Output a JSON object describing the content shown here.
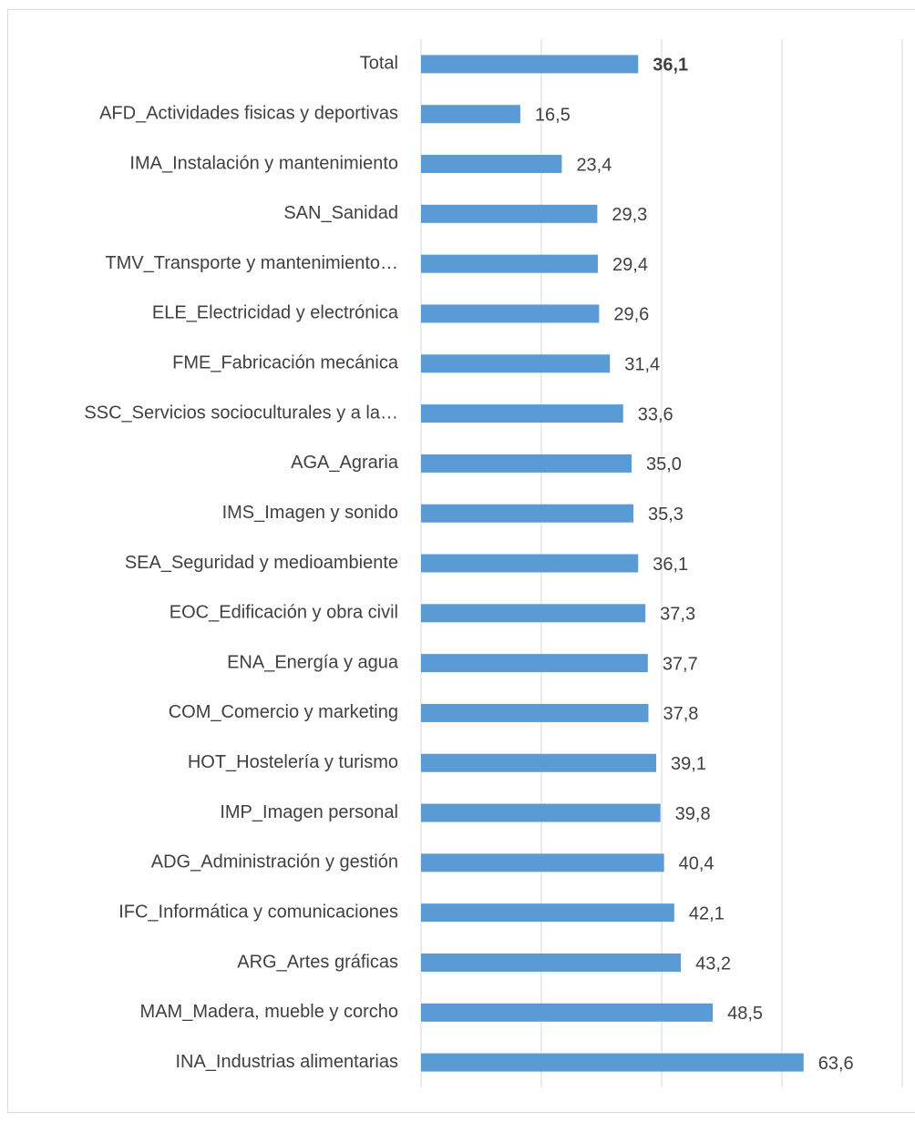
{
  "chart_data": {
    "type": "bar",
    "orientation": "horizontal",
    "categories": [
      "Total",
      "AFD_Actividades fisicas y deportivas",
      "IMA_Instalación y mantenimiento",
      "SAN_Sanidad",
      "TMV_Transporte y mantenimiento…",
      "ELE_Electricidad y electrónica",
      "FME_Fabricación mecánica",
      "SSC_Servicios socioculturales y a la…",
      "AGA_Agraria",
      "IMS_Imagen y sonido",
      "SEA_Seguridad y medioambiente",
      "EOC_Edificación y obra civil",
      "ENA_Energía y agua",
      "COM_Comercio y marketing",
      "HOT_Hostelería y turismo",
      "IMP_Imagen personal",
      "ADG_Administración y gestión",
      "IFC_Informática  y comunicaciones",
      "ARG_Artes gráficas",
      "MAM_Madera, mueble y corcho",
      "INA_Industrias alimentarias"
    ],
    "values": [
      36.1,
      16.5,
      23.4,
      29.3,
      29.4,
      29.6,
      31.4,
      33.6,
      35.0,
      35.3,
      36.1,
      37.3,
      37.7,
      37.8,
      39.1,
      39.8,
      40.4,
      42.1,
      43.2,
      48.5,
      63.6
    ],
    "value_labels": [
      "36,1",
      "16,5",
      "23,4",
      "29,3",
      "29,4",
      "29,6",
      "31,4",
      "33,6",
      "35,0",
      "35,3",
      "36,1",
      "37,3",
      "37,7",
      "37,8",
      "39,1",
      "39,8",
      "40,4",
      "42,1",
      "43,2",
      "48,5",
      "63,6"
    ],
    "color": "#5b9bd5",
    "xlim": [
      0,
      80
    ],
    "xticks": [
      0,
      20,
      40,
      60,
      80
    ],
    "grid": true
  }
}
